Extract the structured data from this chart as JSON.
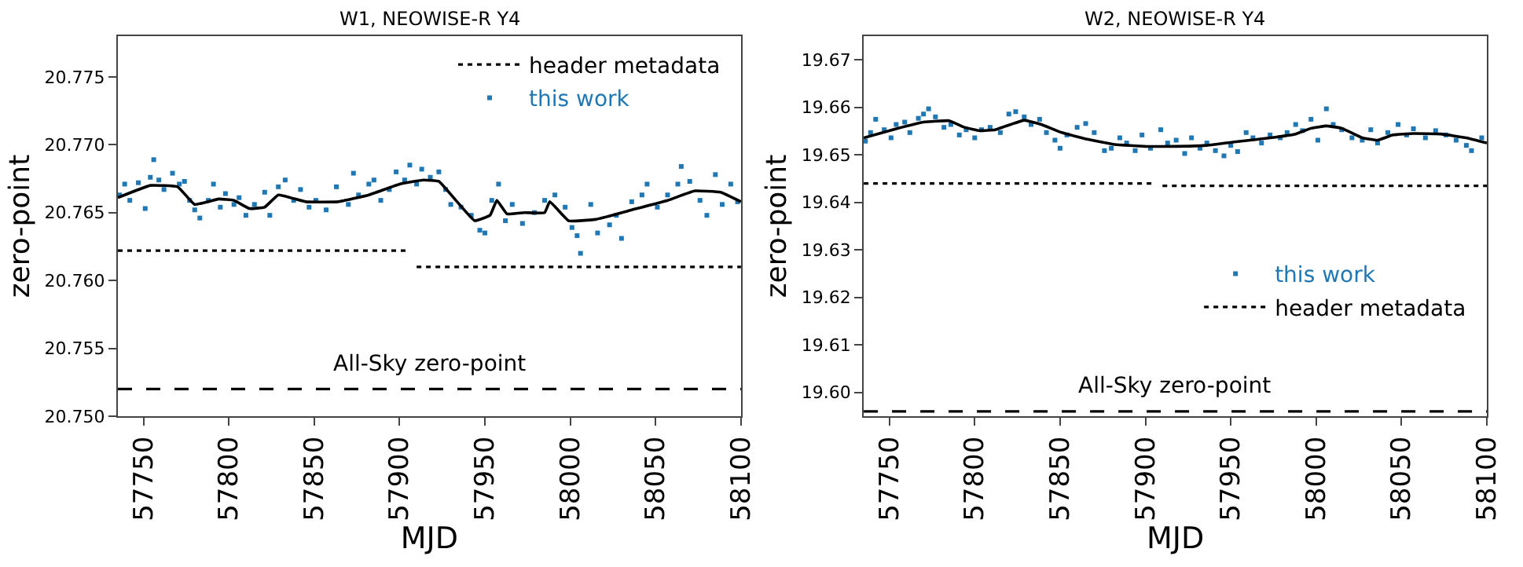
{
  "chart_data": [
    {
      "type": "scatter",
      "title": "W1, NEOWISE-R Y4",
      "xlabel": "MJD",
      "ylabel": "zero-point",
      "xlim": [
        57735,
        58100
      ],
      "xticks": [
        57750,
        57800,
        57850,
        57900,
        57950,
        58000,
        58050,
        58100
      ],
      "ylim": [
        20.75,
        20.778
      ],
      "yticks": [
        {
          "value": 20.75,
          "label": "20.750"
        },
        {
          "value": 20.755,
          "label": "20.755"
        },
        {
          "value": 20.76,
          "label": "20.760"
        },
        {
          "value": 20.765,
          "label": "20.765"
        },
        {
          "value": 20.77,
          "label": "20.770"
        },
        {
          "value": 20.775,
          "label": "20.775"
        }
      ],
      "legend": "top right",
      "series": [
        {
          "name": "header metadata",
          "type": "line",
          "line_style": "dotted",
          "color": "#000000",
          "x": [
            57735,
            57906,
            57908,
            57910,
            58100
          ],
          "values": [
            20.7622,
            20.7622,
            null,
            20.761,
            20.761
          ]
        },
        {
          "name": "this work",
          "type": "scatter",
          "marker": "square",
          "color": "#1f77b4",
          "x": [
            57736,
            57739,
            57742,
            57747,
            57751,
            57754,
            57756,
            57759,
            57762,
            57767,
            57771,
            57774,
            57777,
            57780,
            57783,
            57788,
            57791,
            57795,
            57798,
            57803,
            57806,
            57810,
            57815,
            57821,
            57824,
            57829,
            57833,
            57838,
            57842,
            57847,
            57851,
            57857,
            57863,
            57870,
            57873,
            57876,
            57882,
            57885,
            57889,
            57894,
            57898,
            57903,
            57906,
            57910,
            57913,
            57918,
            57923,
            57927,
            57930,
            57936,
            57942,
            57947,
            57950,
            57954,
            57958,
            57962,
            57966,
            57972,
            57979,
            57985,
            57991,
            57997,
            58001,
            58004,
            58006,
            58012,
            58016,
            58023,
            58027,
            58030,
            58036,
            58042,
            58045,
            58051,
            58057,
            58063,
            58065,
            58070,
            58076,
            58080,
            58085,
            58089,
            58094,
            58098
          ],
          "values": [
            20.7663,
            20.7671,
            20.7659,
            20.7672,
            20.7653,
            20.7676,
            20.7689,
            20.7674,
            20.7667,
            20.7679,
            20.7671,
            20.7673,
            20.7659,
            20.7652,
            20.7646,
            20.7659,
            20.7671,
            20.7654,
            20.7664,
            20.7656,
            20.7661,
            20.7648,
            20.7656,
            20.7665,
            20.7648,
            20.7669,
            20.7674,
            20.7659,
            20.7667,
            20.7654,
            20.7659,
            20.7652,
            20.7669,
            20.7656,
            20.7679,
            20.7663,
            20.7671,
            20.7674,
            20.7659,
            20.7667,
            20.768,
            20.7674,
            20.7685,
            20.7671,
            20.7682,
            20.7676,
            20.768,
            20.7667,
            20.7656,
            20.7654,
            20.7648,
            20.7637,
            20.7635,
            20.7659,
            20.7671,
            20.7644,
            20.7656,
            20.7642,
            20.765,
            20.7659,
            20.7663,
            20.7654,
            20.7639,
            20.7633,
            20.762,
            20.7656,
            20.7635,
            20.7641,
            20.7648,
            20.7631,
            20.7658,
            20.7663,
            20.7671,
            20.7654,
            20.7663,
            20.7671,
            20.7684,
            20.7673,
            20.7659,
            20.7648,
            20.7678,
            20.7656,
            20.7671,
            20.7658
          ]
        },
        {
          "type": "line",
          "color": "#000000",
          "x": [
            57735,
            57754,
            57770,
            57780,
            57794,
            57803,
            57812,
            57821,
            57829,
            57845,
            57864,
            57882,
            57900,
            57914,
            57923,
            57933,
            57944,
            57953,
            57957,
            57963,
            57973,
            57985,
            57988,
            57999,
            58015,
            58036,
            58057,
            58073,
            58088,
            58100
          ],
          "values": [
            20.7661,
            20.767,
            20.7669,
            20.7656,
            20.766,
            20.7659,
            20.7653,
            20.7654,
            20.7663,
            20.7658,
            20.7658,
            20.7663,
            20.7671,
            20.7674,
            20.7673,
            20.7659,
            20.7644,
            20.7648,
            20.7659,
            20.7649,
            20.765,
            20.765,
            20.7658,
            20.7644,
            20.7645,
            20.7652,
            20.7659,
            20.7666,
            20.7665,
            20.7658
          ]
        }
      ],
      "ref_lines": [
        {
          "axis": "y",
          "value": 20.752,
          "label": "All-Sky zero-point",
          "color": "#000000",
          "line_style": "dashed"
        }
      ]
    },
    {
      "type": "scatter",
      "title": "W2, NEOWISE-R Y4",
      "xlabel": "MJD",
      "ylabel": "zero-point",
      "xlim": [
        57735,
        58100
      ],
      "xticks": [
        57750,
        57800,
        57850,
        57900,
        57950,
        58000,
        58050,
        58100
      ],
      "ylim": [
        19.595,
        19.675
      ],
      "yticks": [
        {
          "value": 19.6,
          "label": "19.60"
        },
        {
          "value": 19.61,
          "label": "19.61"
        },
        {
          "value": 19.62,
          "label": "19.62"
        },
        {
          "value": 19.63,
          "label": "19.63"
        },
        {
          "value": 19.64,
          "label": "19.64"
        },
        {
          "value": 19.65,
          "label": "19.65"
        },
        {
          "value": 19.66,
          "label": "19.66"
        },
        {
          "value": 19.67,
          "label": "19.67"
        }
      ],
      "legend": "right",
      "series": [
        {
          "name": "this work",
          "type": "scatter",
          "marker": "square",
          "color": "#1f77b4",
          "x": [
            57736,
            57739,
            57742,
            57747,
            57751,
            57754,
            57759,
            57762,
            57767,
            57770,
            57773,
            57777,
            57782,
            57786,
            57791,
            57795,
            57800,
            57804,
            57809,
            57815,
            57820,
            57824,
            57829,
            57833,
            57838,
            57842,
            57847,
            57850,
            57854,
            57860,
            57865,
            57870,
            57876,
            57880,
            57885,
            57889,
            57894,
            57898,
            57903,
            57909,
            57913,
            57918,
            57923,
            57927,
            57932,
            57936,
            57941,
            57946,
            57950,
            57954,
            57959,
            57963,
            57968,
            57973,
            57979,
            57983,
            57988,
            57992,
            57997,
            58001,
            58006,
            58010,
            58015,
            58021,
            58027,
            58032,
            58036,
            58042,
            58048,
            58053,
            58057,
            58064,
            58070,
            58076,
            58082,
            58088,
            58091,
            58097
          ],
          "values": [
            19.6529,
            19.6547,
            19.6575,
            19.6553,
            19.6536,
            19.6564,
            19.6569,
            19.6547,
            19.6577,
            19.6586,
            19.6597,
            19.658,
            19.6558,
            19.6564,
            19.6542,
            19.6553,
            19.6536,
            19.6553,
            19.6558,
            19.6547,
            19.6586,
            19.6591,
            19.658,
            19.6564,
            19.6575,
            19.6547,
            19.6531,
            19.6514,
            19.6542,
            19.6558,
            19.6566,
            19.6547,
            19.6509,
            19.6514,
            19.6536,
            19.6525,
            19.6509,
            19.6542,
            19.6514,
            19.6553,
            19.6525,
            19.6531,
            19.6503,
            19.6536,
            19.6514,
            19.6525,
            19.6509,
            19.6498,
            19.652,
            19.6507,
            19.6547,
            19.6536,
            19.6525,
            19.6542,
            19.6536,
            19.6547,
            19.6564,
            19.6551,
            19.6575,
            19.6531,
            19.6597,
            19.6564,
            19.6553,
            19.6536,
            19.6531,
            19.6553,
            19.6525,
            19.6547,
            19.6564,
            19.6542,
            19.6555,
            19.6536,
            19.6551,
            19.6542,
            19.6531,
            19.652,
            19.6509,
            19.6536
          ]
        },
        {
          "name": "header metadata",
          "type": "line",
          "line_style": "dotted",
          "color": "#000000",
          "x": [
            57735,
            57906,
            57908,
            57910,
            58100
          ],
          "values": [
            19.644,
            19.644,
            null,
            19.6435,
            19.6435
          ]
        },
        {
          "type": "line",
          "color": "#000000",
          "x": [
            57735,
            57754,
            57770,
            57785,
            57794,
            57803,
            57812,
            57821,
            57829,
            57839,
            57851,
            57866,
            57882,
            57900,
            57918,
            57936,
            57954,
            57973,
            57988,
            57997,
            58006,
            58015,
            58027,
            58036,
            58045,
            58057,
            58073,
            58088,
            58100
          ],
          "values": [
            19.6536,
            19.6555,
            19.6569,
            19.6572,
            19.6558,
            19.6551,
            19.6553,
            19.6564,
            19.6573,
            19.6564,
            19.6547,
            19.6533,
            19.6522,
            19.6518,
            19.6518,
            19.652,
            19.6528,
            19.6536,
            19.6544,
            19.6556,
            19.6561,
            19.6556,
            19.6536,
            19.6531,
            19.6542,
            19.6545,
            19.6544,
            19.6536,
            19.6525
          ]
        }
      ],
      "ref_lines": [
        {
          "axis": "y",
          "value": 19.596,
          "label": "All-Sky zero-point",
          "color": "#000000",
          "line_style": "dashed"
        }
      ]
    }
  ]
}
